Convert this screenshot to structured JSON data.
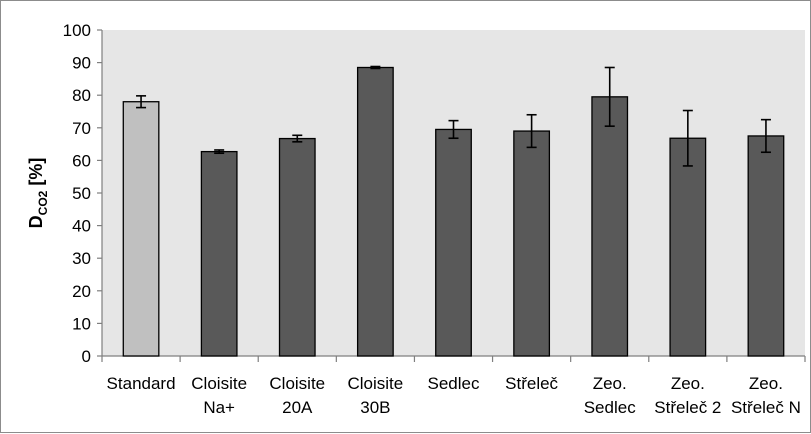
{
  "chart_data": {
    "type": "bar",
    "title": "",
    "xlabel": "",
    "ylabel": {
      "main": "D",
      "subscript": "CO2",
      "unit": "[%]"
    },
    "ylim": [
      0,
      100
    ],
    "ytick_step": 10,
    "grid": false,
    "categories": [
      [
        "Standard"
      ],
      [
        "Cloisite",
        "Na+"
      ],
      [
        "Cloisite",
        "20A"
      ],
      [
        "Cloisite",
        "30B"
      ],
      [
        "Sedlec"
      ],
      [
        "Střeleč"
      ],
      [
        "Zeo.",
        "Sedlec"
      ],
      [
        "Zeo.",
        "Střeleč 2"
      ],
      [
        "Zeo.",
        "Střeleč N"
      ]
    ],
    "values": [
      78,
      62.7,
      66.7,
      88.5,
      69.5,
      69,
      79.5,
      66.8,
      67.5
    ],
    "errors": [
      1.8,
      0.5,
      1.0,
      0.3,
      2.7,
      5.0,
      9.0,
      8.5,
      5.0
    ],
    "colors": {
      "standard": "#c0c0c0",
      "series": "#595959",
      "plot_background": "#e6e6e6",
      "axis": "#7f7f7f",
      "edge": "#000000"
    }
  }
}
